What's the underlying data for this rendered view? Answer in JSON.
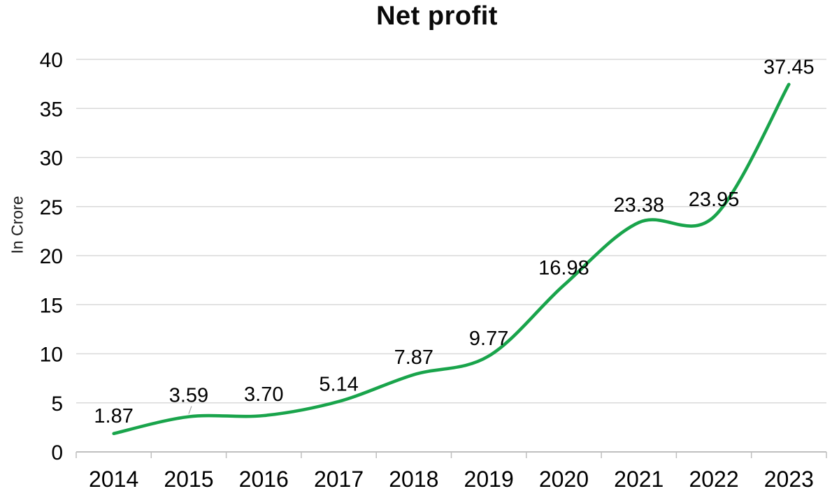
{
  "chart_data": {
    "type": "line",
    "title": "Net profit",
    "xlabel": "",
    "ylabel": "In Crore",
    "categories": [
      "2014",
      "2015",
      "2016",
      "2017",
      "2018",
      "2019",
      "2020",
      "2021",
      "2022",
      "2023"
    ],
    "values": [
      1.87,
      3.59,
      3.7,
      5.14,
      7.87,
      9.77,
      16.98,
      23.38,
      23.95,
      37.45
    ],
    "value_labels": [
      "1.87",
      "3.59",
      "3.70",
      "5.14",
      "7.87",
      "9.77",
      "16.98",
      "23.38",
      "23.95",
      "37.45"
    ],
    "ylim": [
      0,
      40
    ],
    "ytick_step": 5,
    "ytick_labels": [
      "0",
      "5",
      "10",
      "15",
      "20",
      "25",
      "30",
      "35",
      "40"
    ],
    "grid": true,
    "legend": false,
    "smooth": true,
    "data_labels": true,
    "raised_label_indices": [
      1,
      2
    ],
    "leader_line_index": 1,
    "line_color": "#19a44b",
    "gridline_color": "#d9d9d9",
    "axis_color": "#bfbfbf",
    "leader_color": "#a6a6a6",
    "text_color": "#000000"
  }
}
